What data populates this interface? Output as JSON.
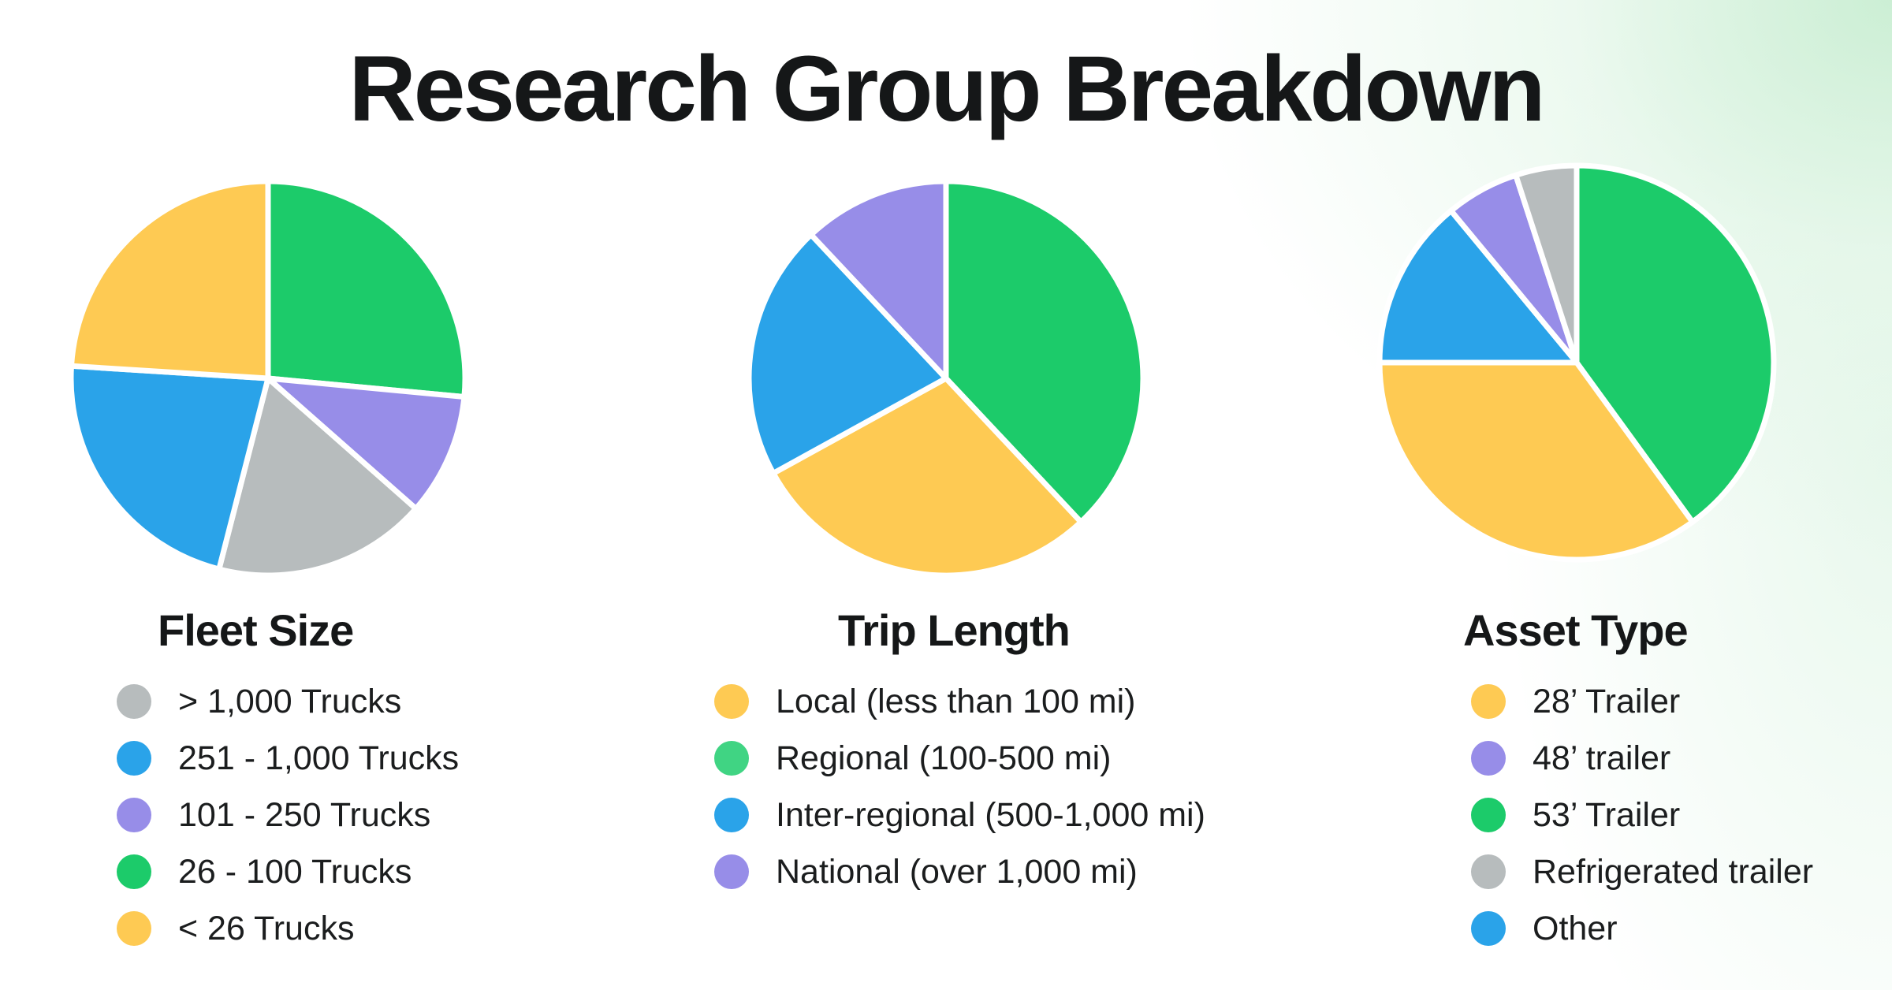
{
  "title": "Research Group Breakdown",
  "colors": {
    "gray": "#B7BCBD",
    "blue": "#2AA3E9",
    "purple": "#978DE8",
    "green": "#1CCB6A",
    "yellow": "#FECA53",
    "regional_green": "#40D483"
  },
  "chart_data": [
    {
      "type": "pie",
      "title": "Fleet Size",
      "legend": [
        {
          "label": "> 1,000 Trucks",
          "color": "#B7BCBD"
        },
        {
          "label": "251 - 1,000 Trucks",
          "color": "#2AA3E9"
        },
        {
          "label": "101 - 250 Trucks",
          "color": "#978DE8"
        },
        {
          "label": "26 - 100 Trucks",
          "color": "#1CCB6A"
        },
        {
          "label": "< 26 Trucks",
          "color": "#FECA53"
        }
      ],
      "slices": [
        {
          "label": "26 - 100 Trucks",
          "value": 26.5,
          "color": "#1CCB6A"
        },
        {
          "label": "101 - 250 Trucks",
          "value": 10,
          "color": "#978DE8"
        },
        {
          "label": "> 1,000 Trucks",
          "value": 17.5,
          "color": "#B7BCBD"
        },
        {
          "label": "251 - 1,000 Trucks",
          "value": 22,
          "color": "#2AA3E9"
        },
        {
          "label": "< 26 Trucks",
          "value": 24,
          "color": "#FECA53"
        }
      ]
    },
    {
      "type": "pie",
      "title": "Trip Length",
      "legend": [
        {
          "label": "Local (less than 100 mi)",
          "color": "#FECA53"
        },
        {
          "label": "Regional (100-500 mi)",
          "color": "#40D483"
        },
        {
          "label": "Inter-regional (500-1,000 mi)",
          "color": "#2AA3E9"
        },
        {
          "label": "National (over 1,000 mi)",
          "color": "#978DE8"
        }
      ],
      "slices": [
        {
          "label": "Regional (100-500 mi)",
          "value": 38,
          "color": "#1CCB6A"
        },
        {
          "label": "Local (less than 100 mi)",
          "value": 29,
          "color": "#FECA53"
        },
        {
          "label": "Inter-regional (500-1,000 mi)",
          "value": 21,
          "color": "#2AA3E9"
        },
        {
          "label": "National (over 1,000 mi)",
          "value": 12,
          "color": "#978DE8"
        }
      ]
    },
    {
      "type": "pie",
      "title": "Asset Type",
      "legend": [
        {
          "label": "28’ Trailer",
          "color": "#FECA53"
        },
        {
          "label": "48’ trailer",
          "color": "#978DE8"
        },
        {
          "label": "53’ Trailer",
          "color": "#1CCB6A"
        },
        {
          "label": "Refrigerated trailer",
          "color": "#B7BCBD"
        },
        {
          "label": "Other",
          "color": "#2AA3E9"
        }
      ],
      "slices": [
        {
          "label": "53’ Trailer",
          "value": 40,
          "color": "#1CCB6A"
        },
        {
          "label": "28’ Trailer",
          "value": 35,
          "color": "#FECA53"
        },
        {
          "label": "Other",
          "value": 14,
          "color": "#2AA3E9"
        },
        {
          "label": "48’ trailer",
          "value": 6,
          "color": "#978DE8"
        },
        {
          "label": "Refrigerated trailer",
          "value": 5,
          "color": "#B7BCBD"
        }
      ]
    }
  ]
}
